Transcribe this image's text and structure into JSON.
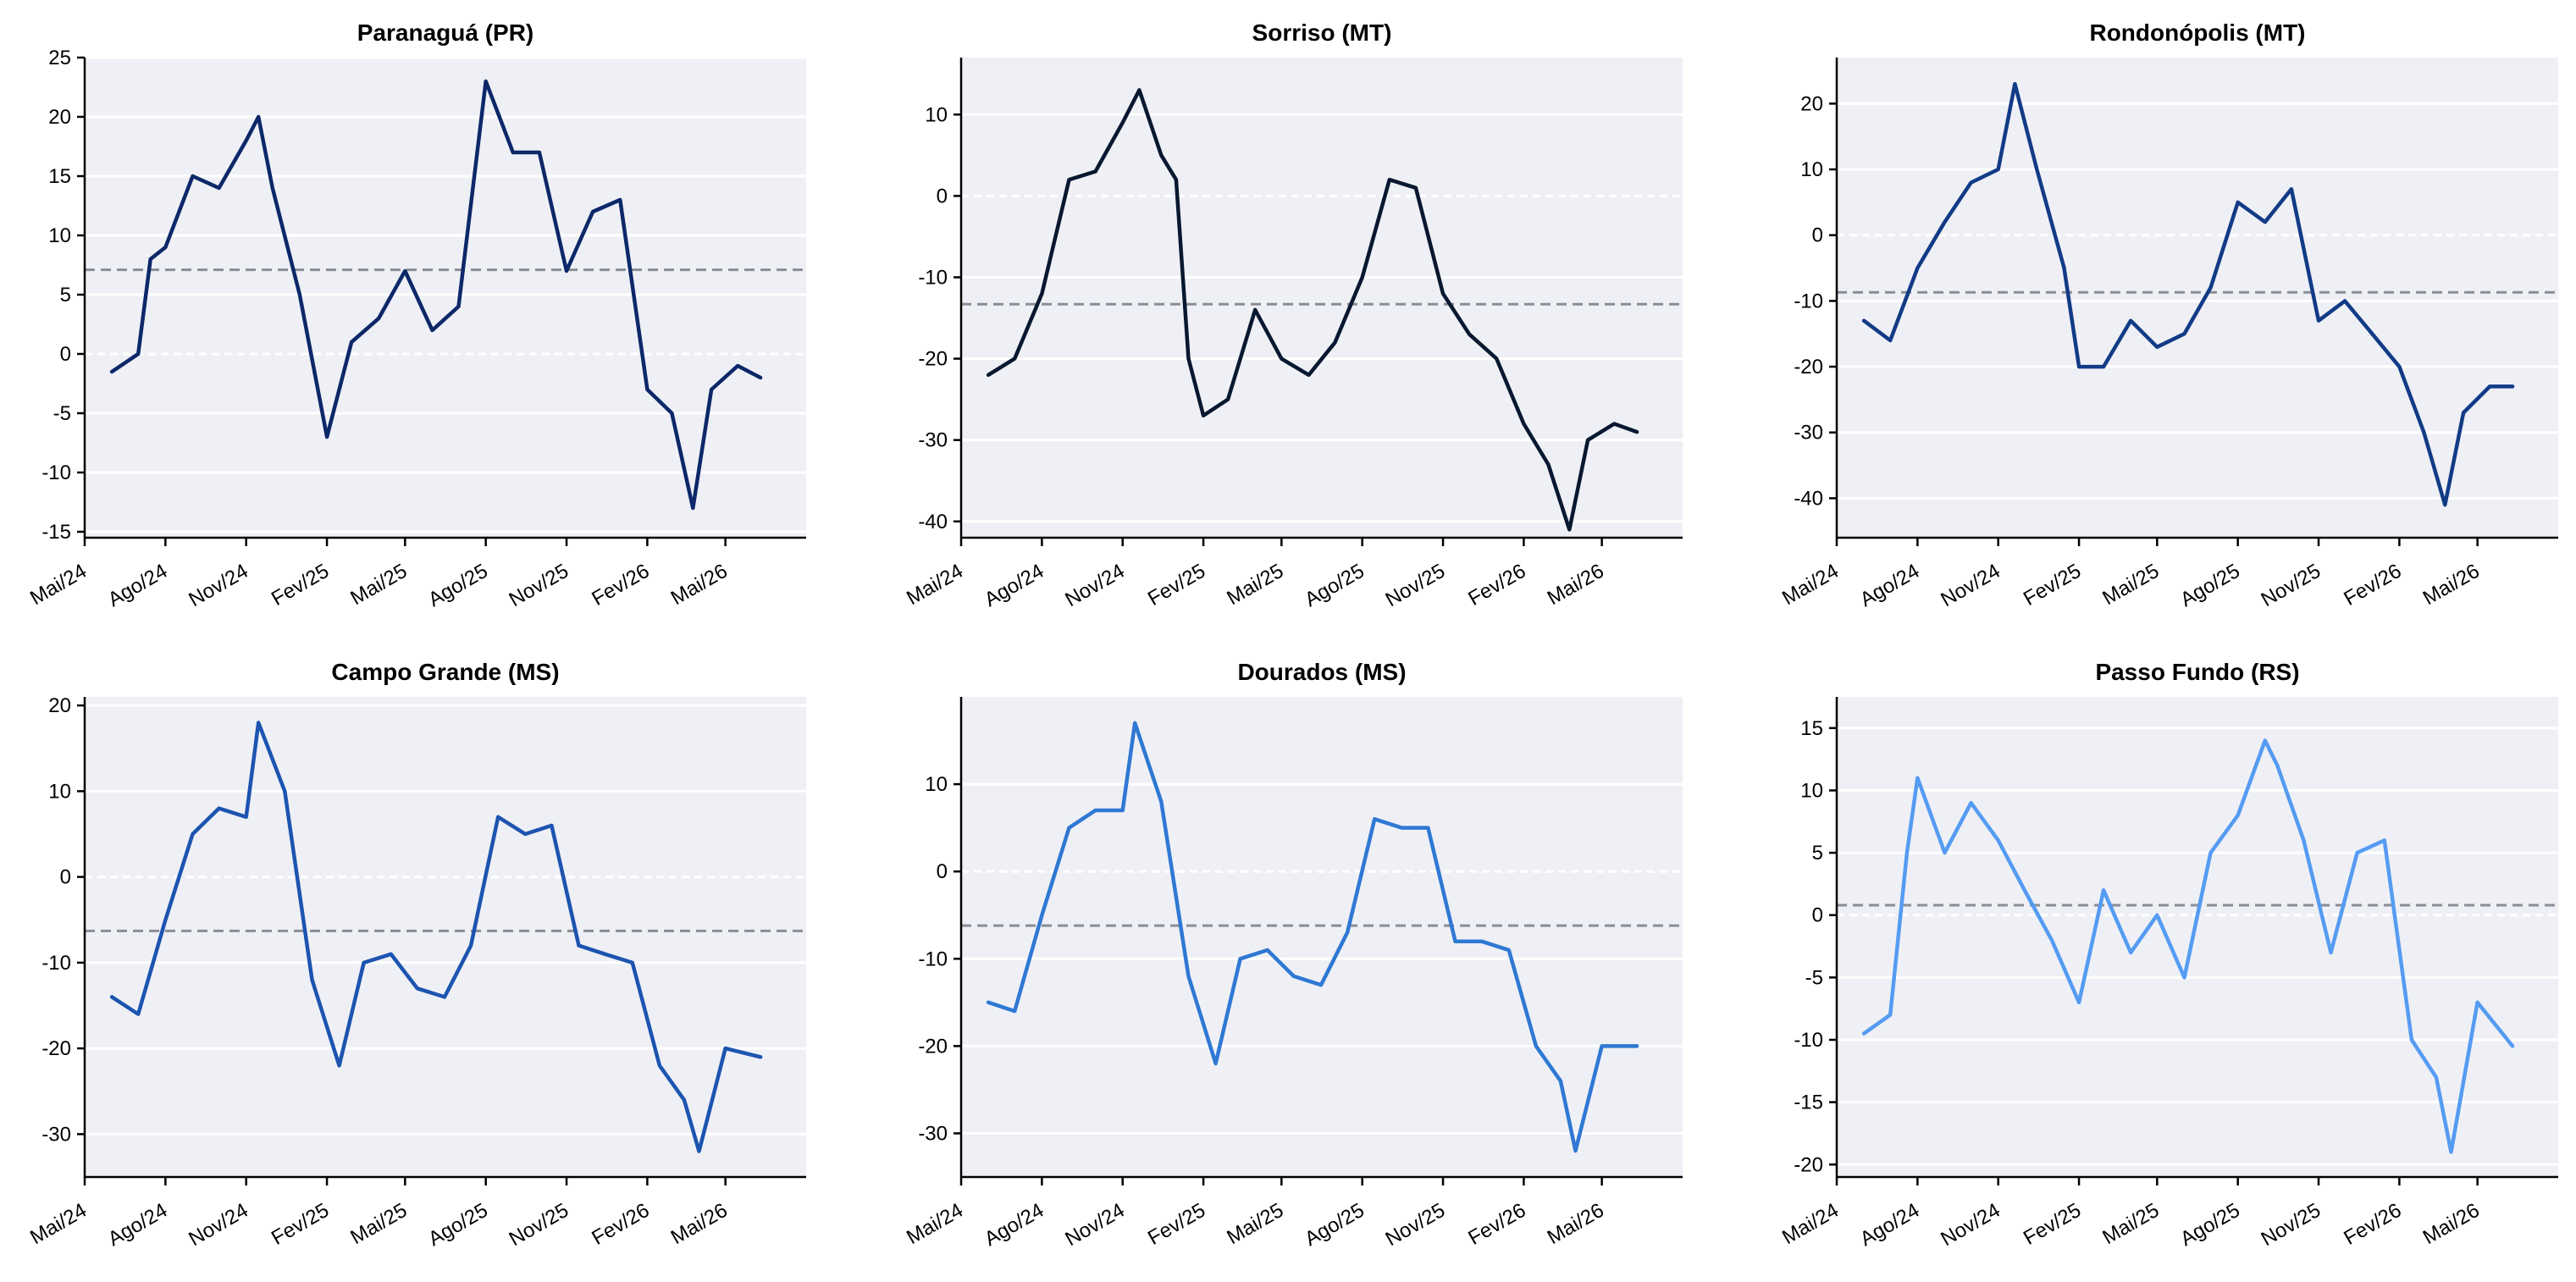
{
  "chart_data": [
    {
      "type": "line",
      "title": "Paranaguá (PR)",
      "xlabel": "",
      "ylabel": "",
      "x_tick_labels": [
        "Mai/24",
        "Ago/24",
        "Nov/24",
        "Fev/25",
        "Mai/25",
        "Ago/25",
        "Nov/25",
        "Fev/26",
        "Mai/26"
      ],
      "x_range": [
        "2024-05",
        "2026-08"
      ],
      "ylim": [
        -15.5,
        25
      ],
      "y_ticks": [
        -15,
        -10,
        -5,
        0,
        5,
        10,
        15,
        20,
        25
      ],
      "reference_line": 7.1,
      "color": "#0c2869",
      "grid": "horizontal",
      "x": [
        "2024-06-01",
        "2024-07-01",
        "2024-07-15",
        "2024-08-01",
        "2024-09-01",
        "2024-10-01",
        "2024-11-01",
        "2024-11-15",
        "2024-12-01",
        "2025-01-01",
        "2025-02-01",
        "2025-03-01",
        "2025-04-01",
        "2025-05-01",
        "2025-06-01",
        "2025-07-01",
        "2025-08-01",
        "2025-09-01",
        "2025-10-01",
        "2025-11-01",
        "2025-12-01",
        "2026-01-01",
        "2026-02-01",
        "2026-03-01",
        "2026-03-25",
        "2026-04-15",
        "2026-05-15",
        "2026-06-10"
      ],
      "y": [
        -1.5,
        0,
        8,
        9,
        15,
        14,
        18,
        20,
        14,
        5,
        -7,
        1,
        3,
        7,
        2,
        4,
        23,
        17,
        17,
        7,
        12,
        13,
        -3,
        -5,
        -13,
        -3,
        -1,
        -2
      ]
    },
    {
      "type": "line",
      "title": "Sorriso (MT)",
      "xlabel": "",
      "ylabel": "",
      "x_tick_labels": [
        "Mai/24",
        "Ago/24",
        "Nov/24",
        "Fev/25",
        "Mai/25",
        "Ago/25",
        "Nov/25",
        "Fev/26",
        "Mai/26"
      ],
      "x_range": [
        "2024-05",
        "2026-08"
      ],
      "ylim": [
        -42,
        17
      ],
      "y_ticks": [
        -40,
        -30,
        -20,
        -10,
        0,
        10
      ],
      "reference_line": -13.3,
      "color": "#081830",
      "grid": "horizontal",
      "x": [
        "2024-06-01",
        "2024-07-01",
        "2024-08-01",
        "2024-09-01",
        "2024-10-01",
        "2024-11-01",
        "2024-11-20",
        "2024-12-15",
        "2025-01-01",
        "2025-01-15",
        "2025-02-01",
        "2025-03-01",
        "2025-04-01",
        "2025-05-01",
        "2025-06-01",
        "2025-07-01",
        "2025-08-01",
        "2025-09-01",
        "2025-10-01",
        "2025-11-01",
        "2025-12-01",
        "2026-01-01",
        "2026-02-01",
        "2026-03-01",
        "2026-03-25",
        "2026-04-15",
        "2026-05-15",
        "2026-06-10"
      ],
      "y": [
        -22,
        -20,
        -12,
        2,
        3,
        9,
        13,
        5,
        2,
        -20,
        -27,
        -25,
        -14,
        -20,
        -22,
        -18,
        -10,
        2,
        1,
        -12,
        -17,
        -20,
        -28,
        -33,
        -41,
        -30,
        -28,
        -29
      ]
    },
    {
      "type": "line",
      "title": "Rondonópolis (MT)",
      "xlabel": "",
      "ylabel": "",
      "x_tick_labels": [
        "Mai/24",
        "Ago/24",
        "Nov/24",
        "Fev/25",
        "Mai/25",
        "Ago/25",
        "Nov/25",
        "Fev/26",
        "Mai/26"
      ],
      "x_range": [
        "2024-05",
        "2026-08"
      ],
      "ylim": [
        -46,
        27
      ],
      "y_ticks": [
        -40,
        -30,
        -20,
        -10,
        0,
        10,
        20
      ],
      "reference_line": -8.7,
      "color": "#123b86",
      "grid": "horizontal",
      "x": [
        "2024-06-01",
        "2024-07-01",
        "2024-08-01",
        "2024-09-01",
        "2024-10-01",
        "2024-11-01",
        "2024-11-20",
        "2024-12-15",
        "2025-01-15",
        "2025-02-01",
        "2025-03-01",
        "2025-04-01",
        "2025-05-01",
        "2025-06-01",
        "2025-07-01",
        "2025-08-01",
        "2025-09-01",
        "2025-10-01",
        "2025-11-01",
        "2025-12-01",
        "2026-01-01",
        "2026-02-01",
        "2026-03-01",
        "2026-03-25",
        "2026-04-15",
        "2026-05-15",
        "2026-06-10"
      ],
      "y": [
        -13,
        -16,
        -5,
        2,
        8,
        10,
        23,
        10,
        -5,
        -20,
        -20,
        -13,
        -17,
        -15,
        -8,
        5,
        2,
        7,
        -13,
        -10,
        -15,
        -20,
        -30,
        -41,
        -27,
        -23,
        -23
      ]
    },
    {
      "type": "line",
      "title": "Campo Grande (MS)",
      "xlabel": "",
      "ylabel": "",
      "x_tick_labels": [
        "Mai/24",
        "Ago/24",
        "Nov/24",
        "Fev/25",
        "Mai/25",
        "Ago/25",
        "Nov/25",
        "Fev/26",
        "Mai/26"
      ],
      "x_range": [
        "2024-05",
        "2026-08"
      ],
      "ylim": [
        -35,
        21
      ],
      "y_ticks": [
        -30,
        -20,
        -10,
        0,
        10,
        20
      ],
      "reference_line": -6.3,
      "color": "#1c54b0",
      "grid": "horizontal",
      "x": [
        "2024-06-01",
        "2024-07-01",
        "2024-08-01",
        "2024-09-01",
        "2024-10-01",
        "2024-11-01",
        "2024-11-15",
        "2024-12-15",
        "2025-01-15",
        "2025-02-15",
        "2025-03-15",
        "2025-04-15",
        "2025-05-15",
        "2025-06-15",
        "2025-07-15",
        "2025-08-15",
        "2025-09-15",
        "2025-10-15",
        "2025-11-15",
        "2025-12-15",
        "2026-01-15",
        "2026-02-15",
        "2026-03-15",
        "2026-04-01",
        "2026-05-01",
        "2026-06-10"
      ],
      "y": [
        -14,
        -16,
        -5,
        5,
        8,
        7,
        18,
        10,
        -12,
        -22,
        -10,
        -9,
        -13,
        -14,
        -8,
        7,
        5,
        6,
        -8,
        -9,
        -10,
        -22,
        -26,
        -32,
        -20,
        -21
      ]
    },
    {
      "type": "line",
      "title": "Dourados (MS)",
      "xlabel": "",
      "ylabel": "",
      "x_tick_labels": [
        "Mai/24",
        "Ago/24",
        "Nov/24",
        "Fev/25",
        "Mai/25",
        "Ago/25",
        "Nov/25",
        "Fev/26",
        "Mai/26"
      ],
      "x_range": [
        "2024-05",
        "2026-08"
      ],
      "ylim": [
        -35,
        20
      ],
      "y_ticks": [
        -30,
        -20,
        -10,
        0,
        10
      ],
      "reference_line": -6.2,
      "color": "#2f78d4",
      "grid": "horizontal",
      "x": [
        "2024-06-01",
        "2024-07-01",
        "2024-08-01",
        "2024-09-01",
        "2024-10-01",
        "2024-11-01",
        "2024-11-15",
        "2024-12-15",
        "2025-01-15",
        "2025-02-15",
        "2025-03-15",
        "2025-04-15",
        "2025-05-15",
        "2025-06-15",
        "2025-07-15",
        "2025-08-15",
        "2025-09-15",
        "2025-10-15",
        "2025-11-15",
        "2025-12-15",
        "2026-01-15",
        "2026-02-15",
        "2026-03-15",
        "2026-04-01",
        "2026-05-01",
        "2026-06-10"
      ],
      "y": [
        -15,
        -16,
        -5,
        5,
        7,
        7,
        17,
        8,
        -12,
        -22,
        -10,
        -9,
        -12,
        -13,
        -7,
        6,
        5,
        5,
        -8,
        -8,
        -9,
        -20,
        -24,
        -32,
        -20,
        -20
      ]
    },
    {
      "type": "line",
      "title": "Passo Fundo (RS)",
      "xlabel": "",
      "ylabel": "",
      "x_tick_labels": [
        "Mai/24",
        "Ago/24",
        "Nov/24",
        "Fev/25",
        "Mai/25",
        "Ago/25",
        "Nov/25",
        "Fev/26",
        "Mai/26"
      ],
      "x_range": [
        "2024-05",
        "2026-08"
      ],
      "ylim": [
        -21,
        17.5
      ],
      "y_ticks": [
        -20,
        -15,
        -10,
        -5,
        0,
        5,
        10,
        15
      ],
      "reference_line": 0.8,
      "color": "#559bf2",
      "grid": "horizontal",
      "x": [
        "2024-06-01",
        "2024-07-01",
        "2024-07-20",
        "2024-08-01",
        "2024-09-01",
        "2024-10-01",
        "2024-11-01",
        "2024-12-01",
        "2025-01-01",
        "2025-02-01",
        "2025-03-01",
        "2025-04-01",
        "2025-05-01",
        "2025-06-01",
        "2025-07-01",
        "2025-08-01",
        "2025-09-01",
        "2025-09-15",
        "2025-10-15",
        "2025-11-15",
        "2025-12-15",
        "2026-01-15",
        "2026-02-15",
        "2026-03-15",
        "2026-04-01",
        "2026-05-01",
        "2026-06-10"
      ],
      "y": [
        -9.5,
        -8,
        5,
        11,
        5,
        9,
        6,
        2,
        -2,
        -7,
        2,
        -3,
        0,
        -5,
        5,
        8,
        14,
        12,
        6,
        -3,
        5,
        6,
        -10,
        -13,
        -19,
        -7,
        -10.5
      ]
    }
  ]
}
